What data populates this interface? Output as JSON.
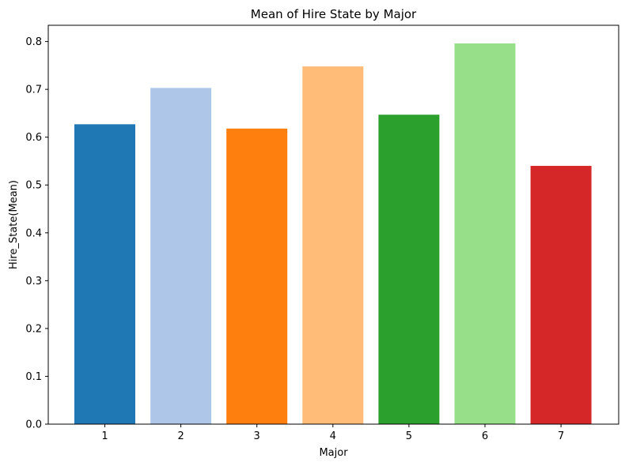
{
  "chart_data": {
    "type": "bar",
    "title": "Mean of Hire State by Major",
    "xlabel": "Major",
    "ylabel": "Hire_State(Mean)",
    "categories": [
      "1",
      "2",
      "3",
      "4",
      "5",
      "6",
      "7"
    ],
    "values": [
      0.627,
      0.703,
      0.618,
      0.748,
      0.647,
      0.796,
      0.54
    ],
    "colors": [
      "#1f77b4",
      "#aec7e8",
      "#ff7f0e",
      "#ffbb78",
      "#2ca02c",
      "#98df8a",
      "#d62728"
    ],
    "ylim": [
      0,
      0.834
    ],
    "yticks": [
      "0.0",
      "0.1",
      "0.2",
      "0.3",
      "0.4",
      "0.5",
      "0.6",
      "0.7",
      "0.8"
    ],
    "grid": false,
    "legend": "none"
  }
}
